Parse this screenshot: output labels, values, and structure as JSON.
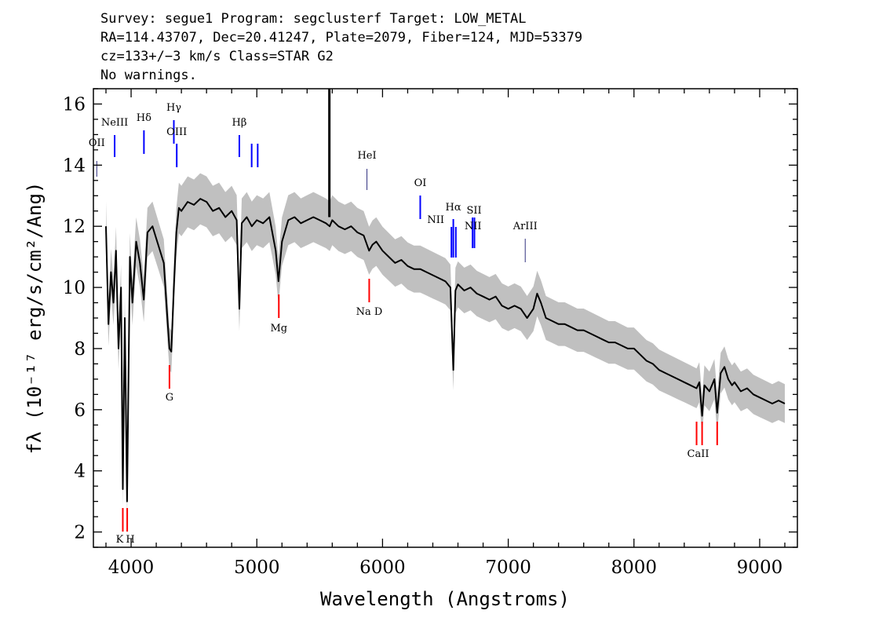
{
  "header": {
    "line1": "Survey: segue1 Program: segclusterf Target: LOW_METAL",
    "line2": "RA=114.43707, Dec=20.41247, Plate=2079, Fiber=124, MJD=53379",
    "line3": "cz=133+/−3 km/s Class=STAR G2",
    "line4": "No warnings."
  },
  "chart_data": {
    "type": "line",
    "title": "",
    "xlabel": "Wavelength (Angstroms)",
    "ylabel": "fλ (10⁻¹⁷ erg/s/cm²/Ang)",
    "xlim": [
      3700,
      9300
    ],
    "ylim": [
      1.5,
      16.5
    ],
    "x_ticks": [
      4000,
      5000,
      6000,
      7000,
      8000,
      9000
    ],
    "y_ticks": [
      2,
      4,
      6,
      8,
      10,
      12,
      14,
      16
    ],
    "series": [
      {
        "role": "flux",
        "color": "#000000",
        "x": [
          3800,
          3820,
          3840,
          3860,
          3880,
          3900,
          3920,
          3934,
          3950,
          3968,
          3990,
          4010,
          4040,
          4070,
          4101,
          4130,
          4170,
          4200,
          4230,
          4260,
          4290,
          4305,
          4320,
          4340,
          4360,
          4380,
          4400,
          4450,
          4500,
          4550,
          4600,
          4650,
          4700,
          4750,
          4800,
          4840,
          4861,
          4880,
          4920,
          4960,
          5000,
          5050,
          5100,
          5150,
          5172,
          5200,
          5250,
          5300,
          5350,
          5400,
          5450,
          5500,
          5550,
          5580,
          5600,
          5650,
          5700,
          5750,
          5800,
          5850,
          5893,
          5920,
          5950,
          6000,
          6050,
          6100,
          6150,
          6200,
          6250,
          6300,
          6350,
          6400,
          6450,
          6500,
          6540,
          6563,
          6580,
          6600,
          6650,
          6700,
          6750,
          6800,
          6850,
          6900,
          6950,
          7000,
          7050,
          7100,
          7150,
          7200,
          7230,
          7260,
          7300,
          7350,
          7400,
          7450,
          7500,
          7550,
          7600,
          7650,
          7700,
          7750,
          7800,
          7850,
          7900,
          7950,
          8000,
          8050,
          8100,
          8150,
          8200,
          8250,
          8300,
          8350,
          8400,
          8450,
          8498,
          8520,
          8542,
          8560,
          8600,
          8640,
          8662,
          8690,
          8720,
          8750,
          8780,
          8800,
          8850,
          8900,
          8950,
          9000,
          9050,
          9100,
          9150,
          9200
        ],
        "y": [
          12.0,
          8.8,
          10.5,
          9.5,
          11.2,
          8.0,
          10.0,
          3.4,
          9.0,
          3.0,
          11.0,
          9.5,
          11.5,
          10.8,
          9.6,
          11.8,
          12.0,
          11.6,
          11.2,
          10.8,
          8.9,
          8.0,
          7.9,
          10.0,
          11.8,
          12.6,
          12.5,
          12.8,
          12.7,
          12.9,
          12.8,
          12.5,
          12.6,
          12.3,
          12.5,
          12.2,
          9.3,
          12.1,
          12.3,
          12.0,
          12.2,
          12.1,
          12.3,
          11.2,
          10.2,
          11.5,
          12.2,
          12.3,
          12.1,
          12.2,
          12.3,
          12.2,
          12.1,
          12.0,
          12.2,
          12.0,
          11.9,
          12.0,
          11.8,
          11.7,
          11.2,
          11.4,
          11.5,
          11.2,
          11.0,
          10.8,
          10.9,
          10.7,
          10.6,
          10.6,
          10.5,
          10.4,
          10.3,
          10.2,
          10.0,
          7.3,
          9.9,
          10.1,
          9.9,
          10.0,
          9.8,
          9.7,
          9.6,
          9.7,
          9.4,
          9.3,
          9.4,
          9.3,
          9.0,
          9.3,
          9.8,
          9.5,
          9.0,
          8.9,
          8.8,
          8.8,
          8.7,
          8.6,
          8.6,
          8.5,
          8.4,
          8.3,
          8.2,
          8.2,
          8.1,
          8.0,
          8.0,
          7.8,
          7.6,
          7.5,
          7.3,
          7.2,
          7.1,
          7.0,
          6.9,
          6.8,
          6.7,
          6.9,
          5.8,
          6.8,
          6.6,
          7.0,
          5.9,
          7.2,
          7.4,
          7.0,
          6.8,
          6.9,
          6.6,
          6.7,
          6.5,
          6.4,
          6.3,
          6.2,
          6.3,
          6.2
        ]
      }
    ],
    "spike": {
      "x": 5577,
      "y": 16.5
    },
    "emission_lines": [
      {
        "label": "OII",
        "wavelength": 3727
      },
      {
        "label": "NeIII",
        "wavelength": 3869
      },
      {
        "label": "Hδ",
        "wavelength": 4102
      },
      {
        "label": "Hγ",
        "wavelength": 4340
      },
      {
        "label": "OIII",
        "wavelength": 4363
      },
      {
        "label": "Hβ",
        "wavelength": 4861
      },
      {
        "label": "OIII",
        "wavelength": 4959
      },
      {
        "label": "OIII",
        "wavelength": 5007
      },
      {
        "label": "HeI",
        "wavelength": 5876
      },
      {
        "label": "OI",
        "wavelength": 6300
      },
      {
        "label": "NII",
        "wavelength": 6548
      },
      {
        "label": "Hα",
        "wavelength": 6563
      },
      {
        "label": "NII",
        "wavelength": 6583
      },
      {
        "label": "SII",
        "wavelength": 6716
      },
      {
        "label": "SII",
        "wavelength": 6731
      },
      {
        "label": "ArIII",
        "wavelength": 7135
      }
    ],
    "absorption_lines": [
      {
        "label": "K",
        "wavelength": 3934
      },
      {
        "label": "H",
        "wavelength": 3969
      },
      {
        "label": "G",
        "wavelength": 4305
      },
      {
        "label": "Mg",
        "wavelength": 5175
      },
      {
        "label": "Na D",
        "wavelength": 5894
      },
      {
        "label": "CaII",
        "wavelength": 8498
      },
      {
        "label": "CaII",
        "wavelength": 8542
      },
      {
        "label": "CaII",
        "wavelength": 8662
      }
    ],
    "colors": {
      "flux": "#000000",
      "error_band": "#c0c0c0",
      "emission": "#0000ff",
      "absorption": "#ff0000"
    }
  }
}
